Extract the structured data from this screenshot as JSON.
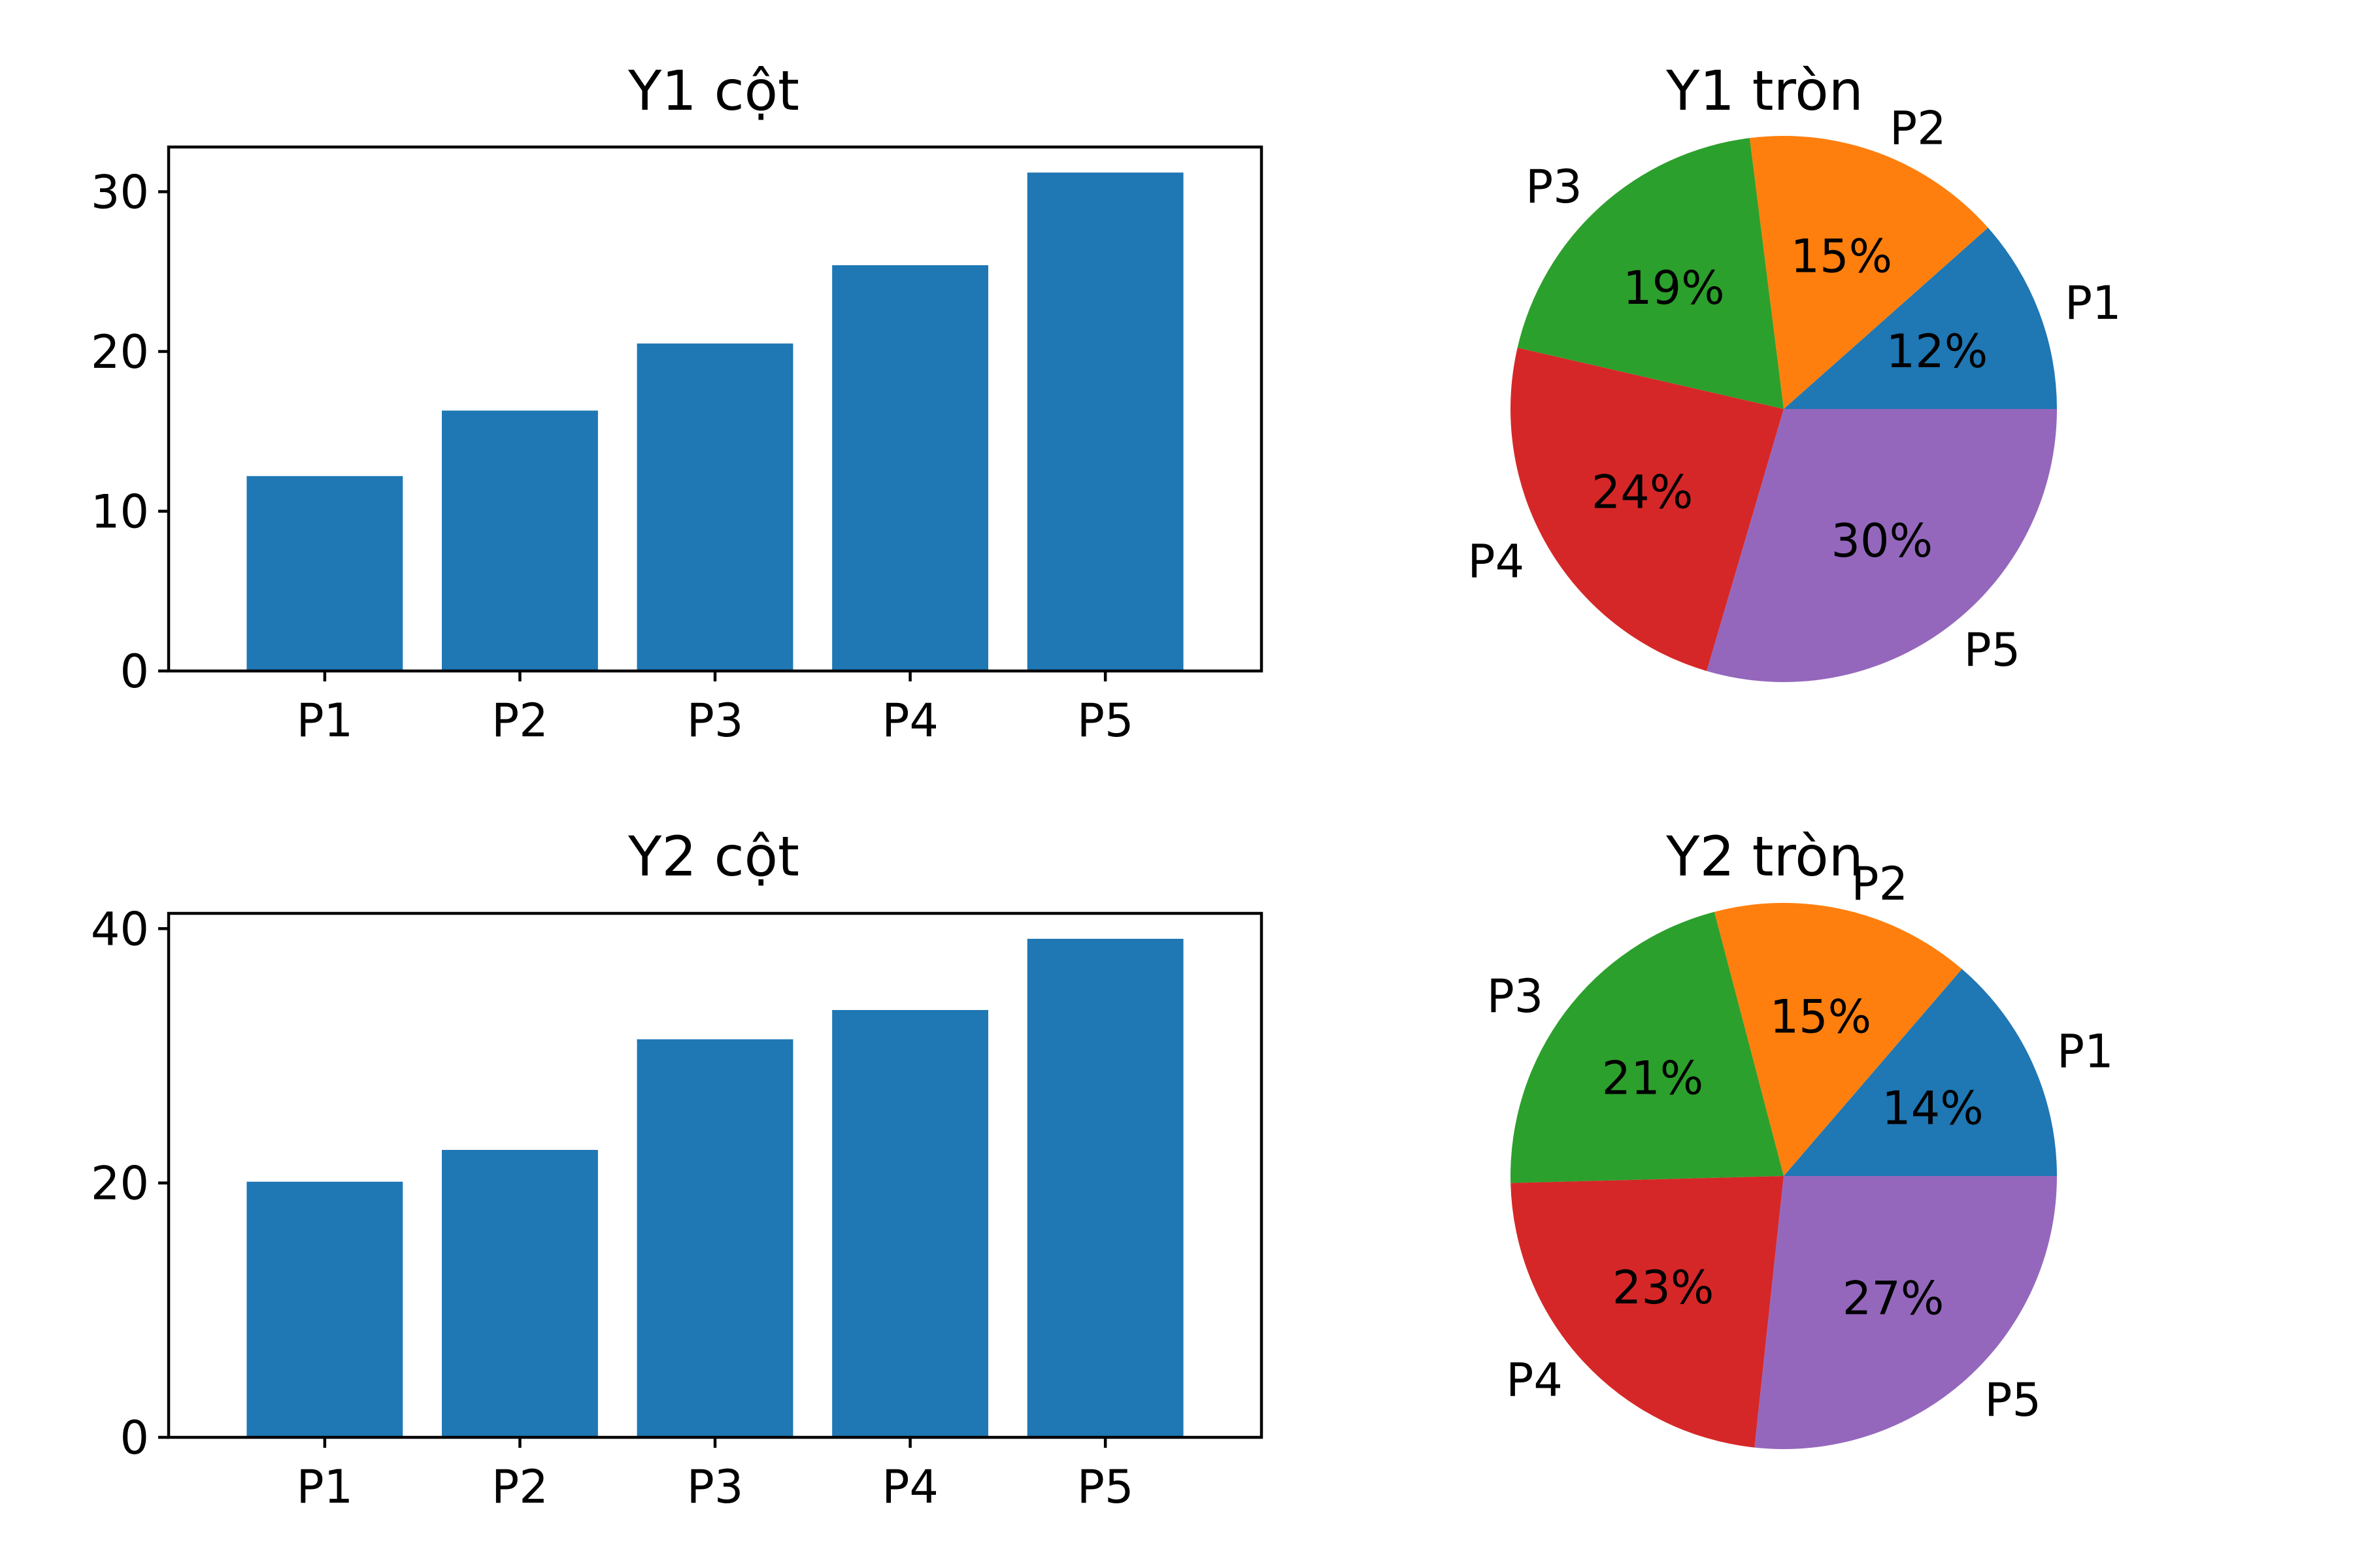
{
  "colors": {
    "bar": "#1f77b4",
    "pie": [
      "#1f77b4",
      "#ff7f0e",
      "#2ca02c",
      "#d62728",
      "#9467bd"
    ]
  },
  "chart_data": [
    {
      "type": "bar",
      "title": "Y1 cột",
      "categories": [
        "P1",
        "P2",
        "P3",
        "P4",
        "P5"
      ],
      "values": [
        12.2,
        16.3,
        20.5,
        25.4,
        31.2
      ],
      "ylim": [
        0,
        32.8
      ],
      "yticks": [
        0,
        10,
        20,
        30
      ],
      "xlabel": "",
      "ylabel": "",
      "grid": false
    },
    {
      "type": "pie",
      "title": "Y1 tròn",
      "labels": [
        "P1",
        "P2",
        "P3",
        "P4",
        "P5"
      ],
      "values": [
        12.2,
        16.3,
        20.5,
        25.4,
        31.2
      ],
      "pct_labels": [
        "12%",
        "15%",
        "19%",
        "24%",
        "30%"
      ]
    },
    {
      "type": "bar",
      "title": "Y2 cột",
      "categories": [
        "P1",
        "P2",
        "P3",
        "P4",
        "P5"
      ],
      "values": [
        20.1,
        22.6,
        31.3,
        33.6,
        39.2
      ],
      "ylim": [
        0,
        41.2
      ],
      "yticks": [
        0,
        20,
        40
      ],
      "xlabel": "",
      "ylabel": "",
      "grid": false
    },
    {
      "type": "pie",
      "title": "Y2 tròn",
      "labels": [
        "P1",
        "P2",
        "P3",
        "P4",
        "P5"
      ],
      "values": [
        20.1,
        22.6,
        31.3,
        33.6,
        39.2
      ],
      "pct_labels": [
        "14%",
        "15%",
        "21%",
        "23%",
        "27%"
      ]
    }
  ]
}
